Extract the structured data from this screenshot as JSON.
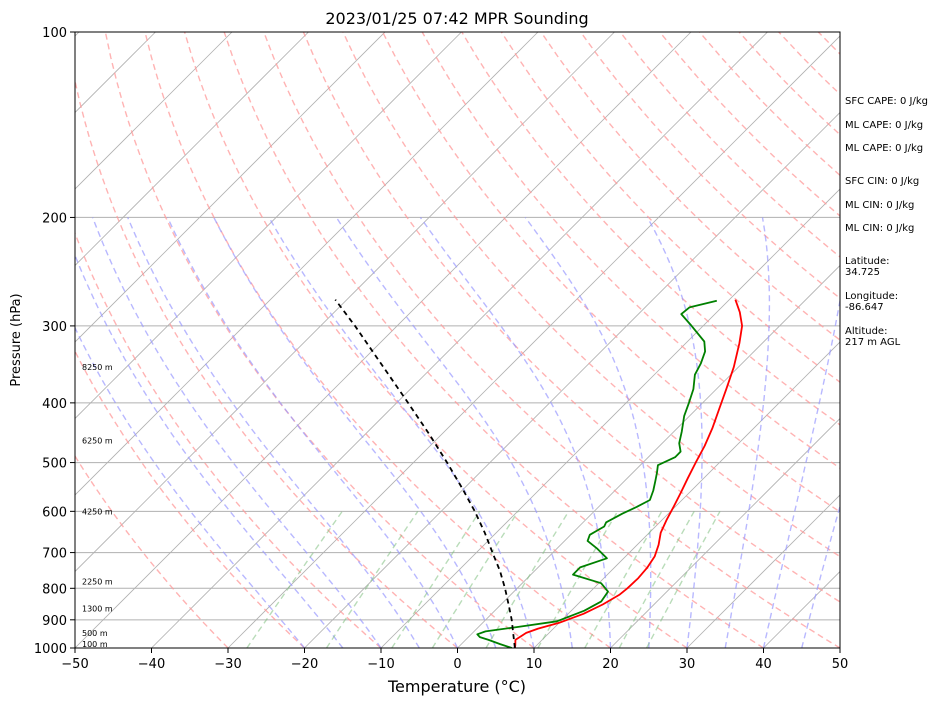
{
  "chart_data": {
    "type": "skew-t",
    "title": "2023/01/25 07:42 MPR Sounding",
    "xlabel": "Temperature (°C)",
    "ylabel": "Pressure (hPa)",
    "xlim": [
      -50,
      50
    ],
    "ylim": [
      1000,
      100
    ],
    "y_scale": "log",
    "grid": true,
    "xticks": [
      "−50",
      "−40",
      "−30",
      "−20",
      "−10",
      "0",
      "10",
      "20",
      "30",
      "40",
      "50"
    ],
    "yticks": [
      "100",
      "200",
      "300",
      "400",
      "500",
      "600",
      "700",
      "800",
      "900",
      "1000"
    ],
    "height_labels": [
      {
        "p": 985,
        "label": "100 m"
      },
      {
        "p": 945,
        "label": "500 m"
      },
      {
        "p": 862,
        "label": "1300 m"
      },
      {
        "p": 780,
        "label": "2250 m"
      },
      {
        "p": 600,
        "label": "4250 m"
      },
      {
        "p": 460,
        "label": "6250 m"
      },
      {
        "p": 350,
        "label": "8250 m"
      }
    ],
    "series": [
      {
        "name": "Temperature",
        "color": "#ff0000",
        "points": [
          [
            1000,
            7.5
          ],
          [
            990,
            7.2
          ],
          [
            970,
            6.5
          ],
          [
            955,
            6.8
          ],
          [
            945,
            7.0
          ],
          [
            930,
            8.0
          ],
          [
            910,
            10.0
          ],
          [
            880,
            12.0
          ],
          [
            850,
            13.3
          ],
          [
            820,
            14.2
          ],
          [
            800,
            14.4
          ],
          [
            770,
            14.5
          ],
          [
            740,
            14.3
          ],
          [
            710,
            13.8
          ],
          [
            680,
            12.8
          ],
          [
            650,
            11.5
          ],
          [
            620,
            10.6
          ],
          [
            590,
            9.8
          ],
          [
            560,
            8.9
          ],
          [
            530,
            7.9
          ],
          [
            500,
            6.9
          ],
          [
            470,
            5.9
          ],
          [
            440,
            4.6
          ],
          [
            410,
            3.0
          ],
          [
            380,
            1.3
          ],
          [
            350,
            -0.6
          ],
          [
            320,
            -3.0
          ],
          [
            300,
            -4.9
          ],
          [
            285,
            -7.0
          ],
          [
            272,
            -9.2
          ]
        ]
      },
      {
        "name": "Dewpoint",
        "color": "#008000",
        "points": [
          [
            1000,
            7.1
          ],
          [
            985,
            5.0
          ],
          [
            970,
            3.0
          ],
          [
            960,
            1.5
          ],
          [
            950,
            0.8
          ],
          [
            940,
            1.5
          ],
          [
            925,
            5.0
          ],
          [
            905,
            9.5
          ],
          [
            870,
            11.7
          ],
          [
            840,
            12.7
          ],
          [
            810,
            12.3
          ],
          [
            785,
            10.3
          ],
          [
            760,
            5.5
          ],
          [
            740,
            5.5
          ],
          [
            715,
            7.8
          ],
          [
            690,
            5.3
          ],
          [
            670,
            3.0
          ],
          [
            655,
            2.5
          ],
          [
            635,
            3.3
          ],
          [
            625,
            3.0
          ],
          [
            605,
            4.0
          ],
          [
            590,
            5.0
          ],
          [
            575,
            5.8
          ],
          [
            555,
            5.0
          ],
          [
            535,
            4.0
          ],
          [
            520,
            3.2
          ],
          [
            505,
            2.3
          ],
          [
            490,
            3.5
          ],
          [
            480,
            3.5
          ],
          [
            465,
            2.2
          ],
          [
            445,
            1.0
          ],
          [
            420,
            -0.7
          ],
          [
            400,
            -1.8
          ],
          [
            380,
            -3.0
          ],
          [
            360,
            -4.7
          ],
          [
            345,
            -5.4
          ],
          [
            330,
            -6.4
          ],
          [
            318,
            -7.8
          ],
          [
            300,
            -11.5
          ],
          [
            287,
            -14.4
          ],
          [
            280,
            -14.2
          ],
          [
            273,
            -11.5
          ]
        ]
      },
      {
        "name": "Parcel",
        "color": "#000000",
        "points": [
          [
            1000,
            7.5
          ],
          [
            950,
            5.5
          ],
          [
            900,
            3.4
          ],
          [
            850,
            1.0
          ],
          [
            800,
            -1.6
          ],
          [
            750,
            -4.5
          ],
          [
            700,
            -7.9
          ],
          [
            650,
            -11.5
          ],
          [
            600,
            -15.6
          ],
          [
            550,
            -20.3
          ],
          [
            500,
            -25.6
          ],
          [
            450,
            -31.6
          ],
          [
            400,
            -38.5
          ],
          [
            350,
            -46.4
          ],
          [
            300,
            -55.5
          ],
          [
            272,
            -61.5
          ]
        ]
      }
    ],
    "annotations": [
      "SFC CAPE: 0 J/kg",
      "ML CAPE: 0 J/kg",
      "ML CAPE: 0 J/kg",
      "SFC CIN: 0 J/kg",
      "ML CIN: 0 J/kg",
      "ML CIN: 0 J/kg",
      "Latitude:",
      "34.725",
      "Longitude:",
      "-86.647",
      "Altitude:",
      "217 m AGL"
    ]
  }
}
